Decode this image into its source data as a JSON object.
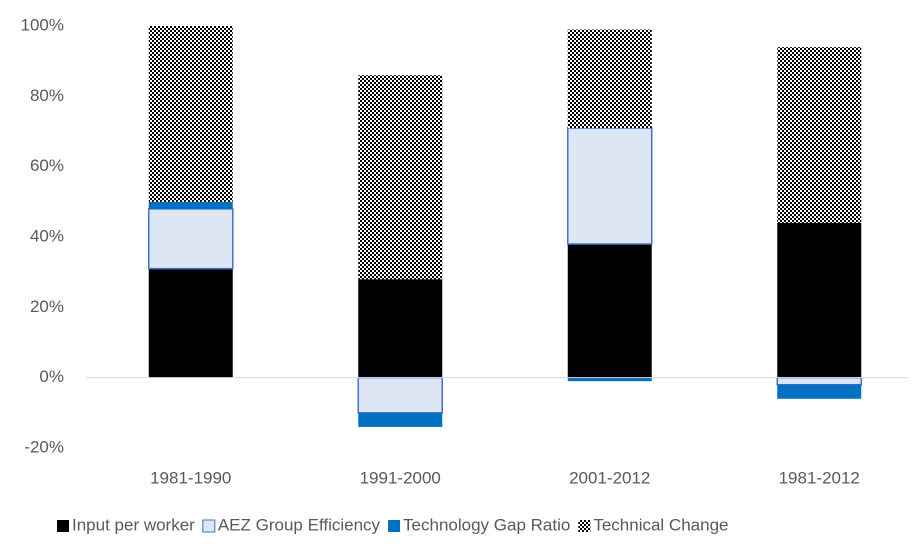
{
  "chart_data": {
    "type": "stacked-bar",
    "categories": [
      "1981-1990",
      "1991-2000",
      "2001-2012",
      "1981-2012"
    ],
    "series": [
      {
        "name": "Input per worker",
        "color": "#000000",
        "values": [
          31,
          28,
          38,
          44
        ]
      },
      {
        "name": "AEZ Group Efficiency",
        "color": "#dce6f4",
        "values": [
          17,
          -10,
          33,
          -2
        ]
      },
      {
        "name": "Technology Gap Ratio",
        "color": "#0070c0",
        "values": [
          2,
          -4,
          -1,
          -4
        ]
      },
      {
        "name": "Technical Change",
        "color": "#000000",
        "values": [
          50,
          58,
          28,
          50
        ]
      }
    ],
    "ylim": [
      -20,
      100
    ],
    "yticks": [
      {
        "value": -20,
        "label": "-20%"
      },
      {
        "value": 0,
        "label": "0%"
      },
      {
        "value": 20,
        "label": "20%"
      },
      {
        "value": 40,
        "label": "40%"
      },
      {
        "value": 60,
        "label": "60%"
      },
      {
        "value": 80,
        "label": "80%"
      },
      {
        "value": 100,
        "label": "100%"
      }
    ],
    "legend": "bottom"
  }
}
